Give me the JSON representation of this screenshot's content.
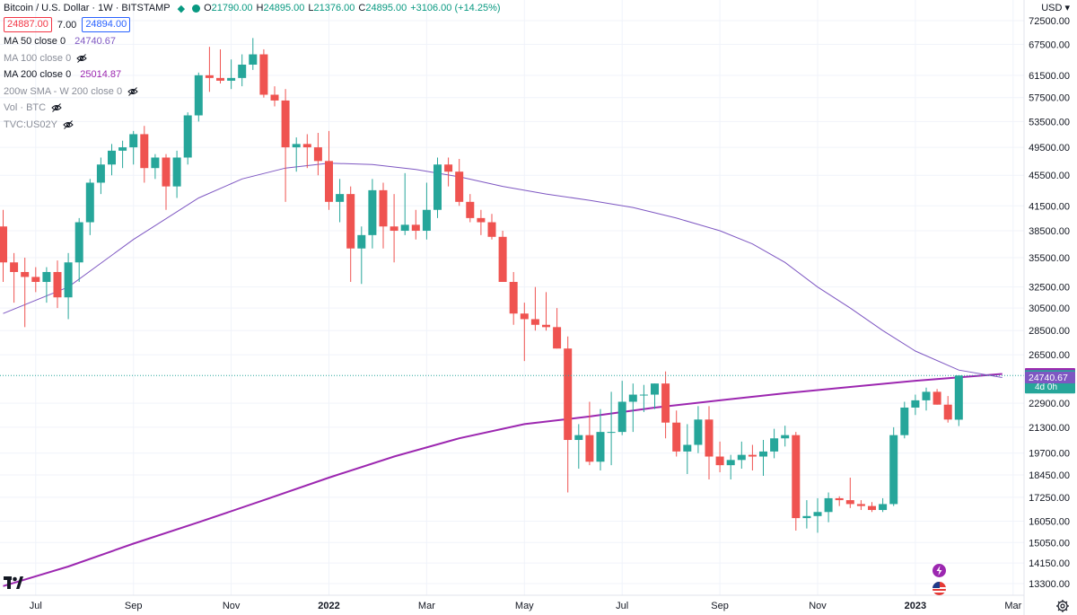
{
  "legend": {
    "title": "Bitcoin / U.S. Dollar · 1W · BITSTAMP",
    "ohlc": {
      "o_label": "O",
      "o": "21790.00",
      "h_label": "H",
      "h": "24895.00",
      "l_label": "L",
      "l": "21376.00",
      "c_label": "C",
      "c": "24895.00",
      "change": "+3106.00 (+14.25%)"
    },
    "sell_price": "24887.00",
    "spread": "7.00",
    "buy_price": "24894.00",
    "indicators": [
      {
        "label": "MA 50 close 0",
        "value": "24740.67",
        "color": "#7e57c2"
      },
      {
        "label": "MA 100 close 0",
        "value": "",
        "hidden": true
      },
      {
        "label": "MA 200 close 0",
        "value": "25014.87",
        "color": "#9c27b0"
      },
      {
        "label": "200w SMA - W 200 close 0",
        "value": "",
        "hidden": true
      },
      {
        "label": "Vol · BTC",
        "value": "",
        "hidden": true
      },
      {
        "label": "TVC:US02Y",
        "value": "",
        "hidden": true
      }
    ]
  },
  "axis": {
    "currency": "USD"
  },
  "colors": {
    "up": "#26a69a",
    "down": "#ef5350",
    "ma50": "#7e57c2",
    "ma200": "#9c27b0",
    "text": "#131722"
  },
  "chart_data": {
    "type": "candlestick",
    "y_ticks": [
      "72500.00",
      "67500.00",
      "61500.00",
      "57500.00",
      "53500.00",
      "49500.00",
      "45500.00",
      "41500.00",
      "38500.00",
      "35500.00",
      "32500.00",
      "30500.00",
      "28500.00",
      "26500.00",
      "22900.00",
      "21300.00",
      "19700.00",
      "18450.00",
      "17250.00",
      "16050.00",
      "15050.00",
      "14150.00",
      "13300.00"
    ],
    "x_ticks": [
      {
        "label": "Jul",
        "week": 3
      },
      {
        "label": "Sep",
        "week": 12
      },
      {
        "label": "Nov",
        "week": 21
      },
      {
        "label": "2022",
        "week": 30
      },
      {
        "label": "Mar",
        "week": 39
      },
      {
        "label": "May",
        "week": 48
      },
      {
        "label": "Jul",
        "week": 57
      },
      {
        "label": "Sep",
        "week": 66
      },
      {
        "label": "Nov",
        "week": 75
      },
      {
        "label": "2023",
        "week": 84
      },
      {
        "label": "Mar",
        "week": 93
      }
    ],
    "candles": [
      [
        39000,
        41000,
        33000,
        35000
      ],
      [
        35000,
        36000,
        31000,
        34000
      ],
      [
        34000,
        35500,
        28800,
        33500
      ],
      [
        33500,
        34500,
        32000,
        33000
      ],
      [
        33000,
        34500,
        31000,
        34000
      ],
      [
        34000,
        35200,
        30500,
        31500
      ],
      [
        31500,
        36000,
        29500,
        35000
      ],
      [
        35000,
        40000,
        33000,
        39500
      ],
      [
        39500,
        45000,
        38000,
        44500
      ],
      [
        44500,
        48000,
        43000,
        47000
      ],
      [
        47000,
        50000,
        45500,
        49000
      ],
      [
        49000,
        50500,
        46500,
        49500
      ],
      [
        49500,
        52000,
        47000,
        51500
      ],
      [
        51500,
        52800,
        44500,
        46500
      ],
      [
        46500,
        48500,
        45000,
        48000
      ],
      [
        48000,
        48500,
        41000,
        44000
      ],
      [
        44000,
        49000,
        42500,
        48000
      ],
      [
        48000,
        55000,
        47000,
        54500
      ],
      [
        54500,
        62000,
        53500,
        61500
      ],
      [
        61500,
        67000,
        58500,
        61000
      ],
      [
        61000,
        66500,
        60000,
        60500
      ],
      [
        60500,
        64500,
        59000,
        61000
      ],
      [
        61000,
        65500,
        59500,
        63500
      ],
      [
        63500,
        68800,
        62500,
        65500
      ],
      [
        65500,
        66500,
        57500,
        58000
      ],
      [
        58000,
        59500,
        56000,
        57000
      ],
      [
        57000,
        59000,
        42000,
        49500
      ],
      [
        49500,
        51000,
        46000,
        50000
      ],
      [
        50000,
        51500,
        46500,
        49500
      ],
      [
        49500,
        51700,
        45500,
        47500
      ],
      [
        47500,
        52000,
        41000,
        42000
      ],
      [
        42000,
        45000,
        39500,
        43000
      ],
      [
        43000,
        44000,
        33000,
        36500
      ],
      [
        36500,
        39000,
        32800,
        38000
      ],
      [
        38000,
        45000,
        36500,
        43500
      ],
      [
        43500,
        44500,
        36500,
        39000
      ],
      [
        39000,
        43000,
        35000,
        38500
      ],
      [
        38500,
        45800,
        38000,
        39200
      ],
      [
        39200,
        41000,
        37500,
        38500
      ],
      [
        38500,
        44500,
        37500,
        41000
      ],
      [
        41000,
        48000,
        40000,
        47000
      ],
      [
        47000,
        48000,
        44000,
        46000
      ],
      [
        46000,
        47800,
        41500,
        42000
      ],
      [
        42000,
        43000,
        39500,
        40000
      ],
      [
        40000,
        41000,
        38000,
        39500
      ],
      [
        39500,
        40500,
        37500,
        37800
      ],
      [
        37800,
        38500,
        33000,
        33000
      ],
      [
        33000,
        34000,
        29000,
        30000
      ],
      [
        30000,
        31000,
        26000,
        29500
      ],
      [
        29500,
        32500,
        28500,
        29000
      ],
      [
        29000,
        32000,
        28500,
        28800
      ],
      [
        28800,
        30500,
        27000,
        27000
      ],
      [
        27000,
        28000,
        17500,
        20500
      ],
      [
        20500,
        21500,
        18800,
        20800
      ],
      [
        20800,
        23000,
        19000,
        19200
      ],
      [
        19200,
        22500,
        18700,
        21000
      ],
      [
        21000,
        23700,
        19000,
        21000
      ],
      [
        21000,
        24500,
        20800,
        23000
      ],
      [
        23000,
        24300,
        21000,
        23500
      ],
      [
        23500,
        24200,
        22300,
        23500
      ],
      [
        23500,
        24300,
        22500,
        24300
      ],
      [
        24300,
        25200,
        20600,
        21600
      ],
      [
        21600,
        22400,
        19500,
        19800
      ],
      [
        19800,
        21500,
        18500,
        20200
      ],
      [
        20200,
        22700,
        19700,
        21800
      ],
      [
        21800,
        22700,
        18200,
        19500
      ],
      [
        19500,
        20400,
        18600,
        19000
      ],
      [
        19000,
        19600,
        18200,
        19300
      ],
      [
        19300,
        20400,
        18800,
        19600
      ],
      [
        19600,
        20200,
        18700,
        19500
      ],
      [
        19500,
        20500,
        18400,
        19800
      ],
      [
        19800,
        21200,
        19400,
        20600
      ],
      [
        20600,
        21400,
        20100,
        20800
      ],
      [
        20800,
        21000,
        15600,
        16200
      ],
      [
        16200,
        17100,
        15700,
        16300
      ],
      [
        16300,
        17200,
        15500,
        16500
      ],
      [
        16500,
        17500,
        16000,
        17200
      ],
      [
        17200,
        17300,
        16800,
        17100
      ],
      [
        17100,
        18300,
        16700,
        16900
      ],
      [
        16900,
        17100,
        16600,
        16800
      ],
      [
        16800,
        17000,
        16500,
        16600
      ],
      [
        16600,
        17200,
        16500,
        16900
      ],
      [
        16900,
        21300,
        16800,
        20800
      ],
      [
        20800,
        23000,
        20600,
        22600
      ],
      [
        22600,
        23500,
        22100,
        23100
      ],
      [
        23100,
        24000,
        22400,
        23700
      ],
      [
        23700,
        23900,
        22800,
        22800
      ],
      [
        22800,
        23400,
        21600,
        21800
      ],
      [
        21790,
        24895,
        21376,
        24895
      ]
    ],
    "ma50": [
      [
        0,
        30000
      ],
      [
        6,
        32500
      ],
      [
        12,
        37500
      ],
      [
        18,
        42500
      ],
      [
        22,
        45000
      ],
      [
        26,
        46500
      ],
      [
        30,
        47200
      ],
      [
        34,
        47000
      ],
      [
        38,
        46300
      ],
      [
        42,
        45300
      ],
      [
        46,
        44000
      ],
      [
        50,
        43000
      ],
      [
        54,
        42200
      ],
      [
        58,
        41300
      ],
      [
        62,
        40000
      ],
      [
        66,
        38500
      ],
      [
        69,
        37000
      ],
      [
        72,
        35000
      ],
      [
        75,
        32500
      ],
      [
        78,
        30500
      ],
      [
        81,
        28500
      ],
      [
        84,
        26800
      ],
      [
        88,
        25300
      ],
      [
        92,
        24740
      ]
    ],
    "ma200": [
      [
        0,
        13200
      ],
      [
        6,
        14000
      ],
      [
        12,
        15000
      ],
      [
        18,
        16000
      ],
      [
        24,
        17100
      ],
      [
        30,
        18300
      ],
      [
        36,
        19500
      ],
      [
        42,
        20600
      ],
      [
        48,
        21500
      ],
      [
        54,
        22000
      ],
      [
        60,
        22600
      ],
      [
        66,
        23100
      ],
      [
        72,
        23600
      ],
      [
        78,
        24050
      ],
      [
        84,
        24500
      ],
      [
        92,
        25014
      ]
    ],
    "last_price": {
      "value": 24895,
      "label": "24895.00",
      "countdown": "4d 0h"
    },
    "ma200_label": {
      "value": 25014.87,
      "label": "25014.87"
    },
    "ma50_label": {
      "value": 24740.67,
      "label": "24740.67"
    }
  }
}
